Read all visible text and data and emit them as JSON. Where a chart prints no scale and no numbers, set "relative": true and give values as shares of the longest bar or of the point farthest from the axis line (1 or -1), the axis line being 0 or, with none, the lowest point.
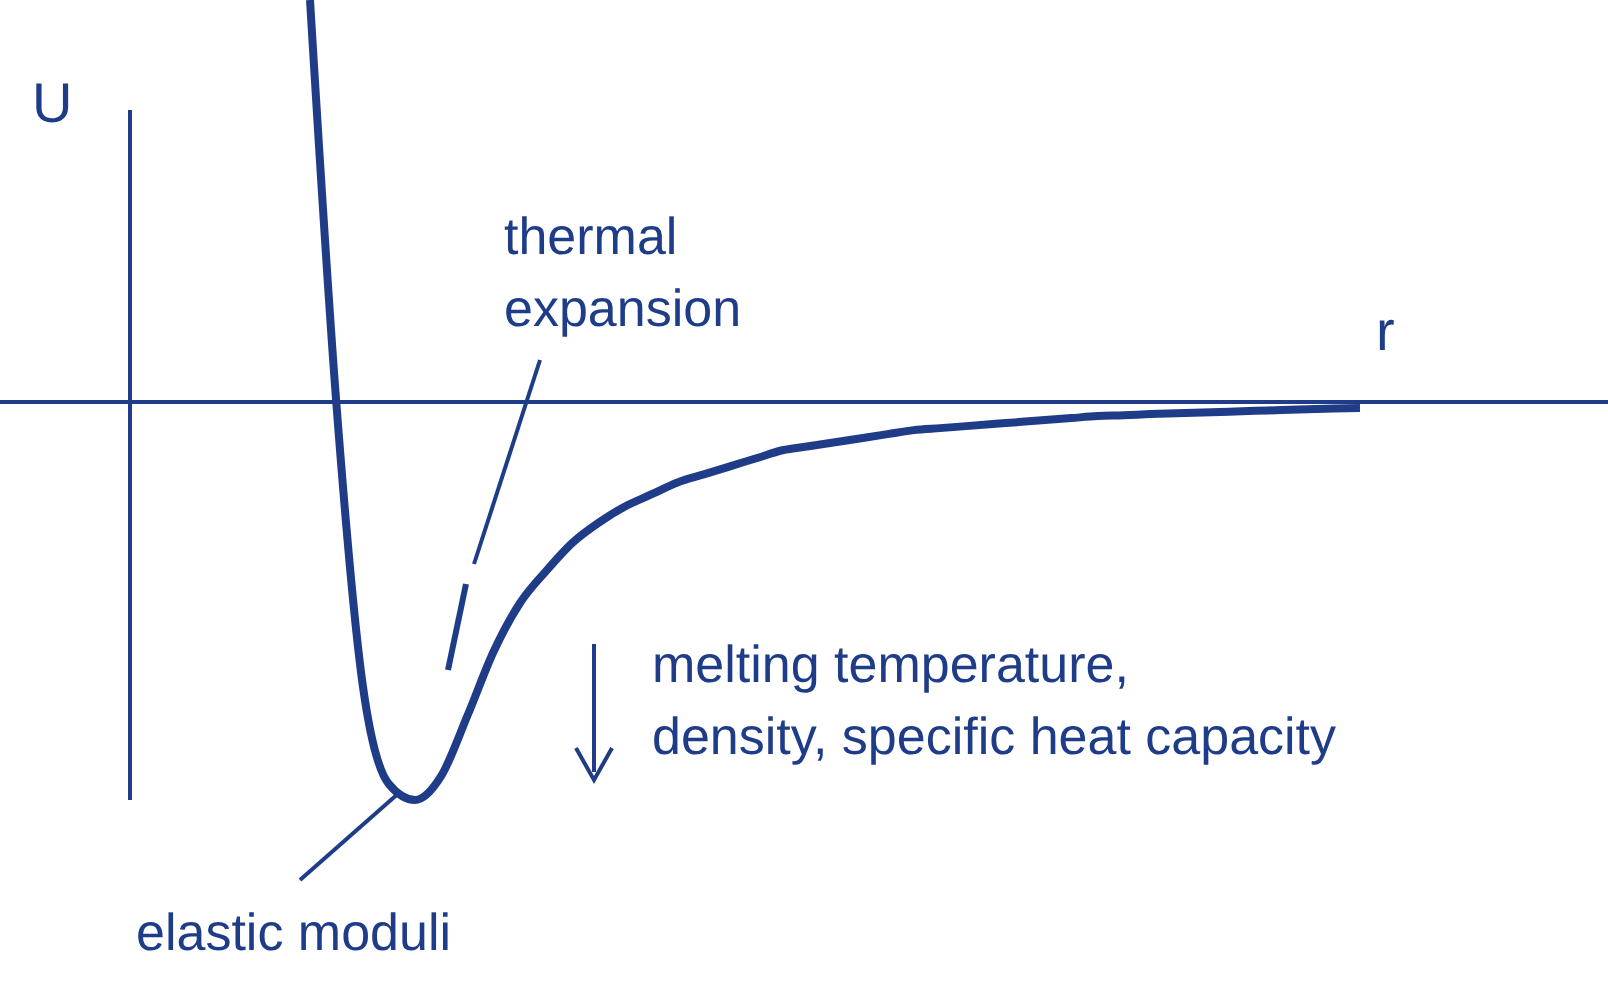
{
  "chart_data": {
    "type": "line",
    "relative": true,
    "ylabel": "U",
    "xlabel": "r",
    "color": "#1f3c88",
    "marker": "none",
    "ref_lines": [
      {
        "axis": "y",
        "value": 0
      }
    ],
    "annotations": [
      "thermal expansion",
      "melting temperature, density, specific heat capacity",
      "elastic moduli"
    ],
    "categories": [
      null,
      null,
      null,
      null,
      null,
      null,
      null,
      null,
      null,
      null,
      null,
      null,
      null,
      null,
      null,
      null,
      null,
      null,
      null,
      null,
      null,
      null,
      null,
      null,
      null,
      null,
      null,
      null,
      null,
      null,
      null,
      null,
      null,
      null,
      null,
      null,
      null,
      null,
      null,
      null,
      null
    ],
    "values": [
      1.0,
      0,
      -0.7,
      -0.95,
      -0.99,
      -0.93,
      -0.78,
      -0.62,
      -0.5,
      -0.42,
      -0.35,
      -0.3,
      -0.26,
      -0.23,
      -0.2,
      -0.18,
      -0.16,
      -0.14,
      -0.12,
      -0.11,
      -0.1,
      -0.09,
      -0.08,
      -0.07,
      -0.065,
      -0.06,
      -0.055,
      -0.05,
      -0.045,
      -0.04,
      -0.035,
      -0.033,
      -0.03,
      -0.028,
      -0.026,
      -0.024,
      -0.022,
      -0.02,
      -0.018,
      -0.016,
      -0.015
    ]
  }
}
